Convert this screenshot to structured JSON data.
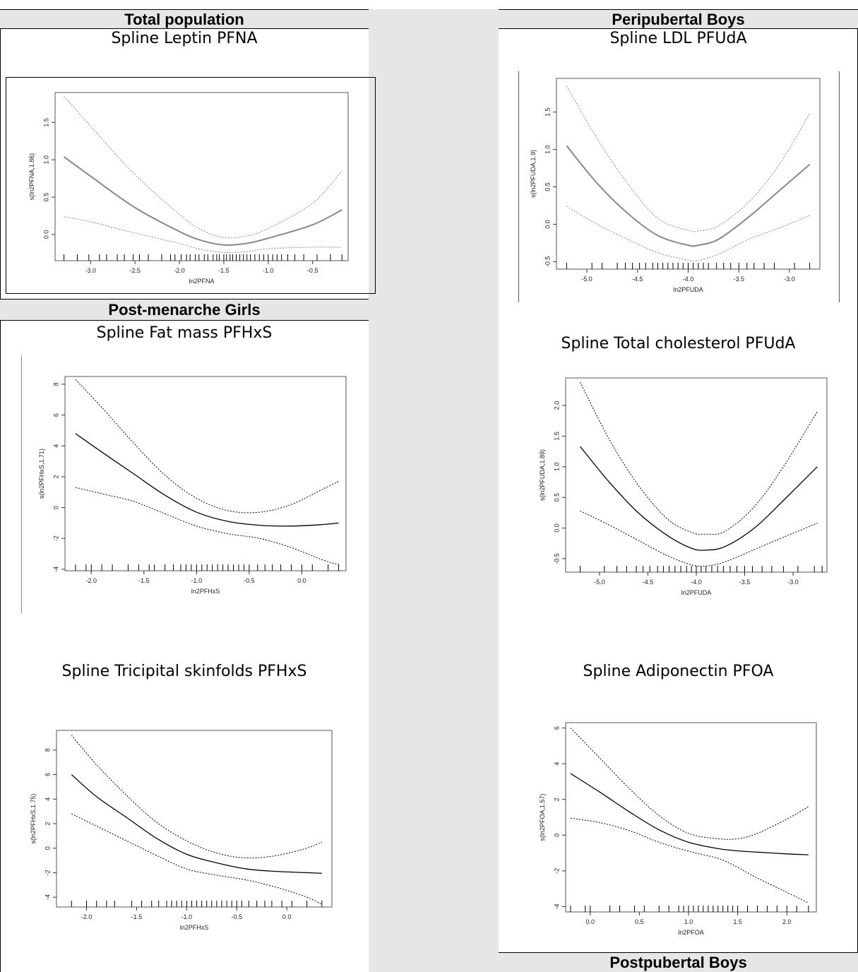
{
  "sections": {
    "total_population": "Total population",
    "post_menarche_girls": "Post-menarche Girls",
    "peripubertal_boys": "Peripubertal Boys",
    "postpubertal_boys": "Postpubertal Boys"
  },
  "charts": {
    "leptin": {
      "title": "Spline Leptin PFNA",
      "chart_data": {
        "type": "line",
        "title": "Spline Leptin PFNA",
        "xlabel": "ln2PFNA",
        "ylabel": "s(ln2PFNA,1.86)",
        "xlim": [
          -3.4,
          -0.1
        ],
        "ylim": [
          -0.35,
          1.9
        ],
        "xticks": [
          -3.0,
          -2.5,
          -2.0,
          -1.5,
          -1.0,
          -0.5
        ],
        "xtick_labels": [
          "-3.0",
          "-2.5",
          "-2.0",
          "-1.5",
          "-1.0",
          "-0.5"
        ],
        "yticks": [
          0.0,
          0.5,
          1.0,
          1.5
        ],
        "ytick_labels": [
          "0.0",
          "0.5",
          "1.0",
          "1.5"
        ],
        "series": [
          {
            "style": "solid",
            "x": [
              -3.3,
              -3.0,
              -2.5,
              -2.0,
              -1.75,
              -1.5,
              -1.25,
              -1.0,
              -0.5,
              -0.17
            ],
            "y": [
              1.04,
              0.78,
              0.36,
              0.04,
              -0.08,
              -0.14,
              -0.12,
              -0.05,
              0.13,
              0.33
            ]
          },
          {
            "style": "dotted",
            "x": [
              -3.3,
              -3.0,
              -2.5,
              -2.0,
              -1.75,
              -1.5,
              -1.25,
              -1.0,
              -0.5,
              -0.17
            ],
            "y": [
              1.85,
              1.45,
              0.8,
              0.27,
              0.06,
              -0.04,
              -0.02,
              0.08,
              0.42,
              0.85
            ]
          },
          {
            "style": "dotted",
            "x": [
              -3.3,
              -3.0,
              -2.5,
              -2.0,
              -1.75,
              -1.5,
              -1.25,
              -1.0,
              -0.5,
              -0.17
            ],
            "y": [
              0.24,
              0.17,
              0.02,
              -0.12,
              -0.2,
              -0.24,
              -0.23,
              -0.19,
              -0.17,
              -0.17
            ]
          }
        ],
        "rug": [
          -3.3,
          -3.15,
          -3.02,
          -2.9,
          -2.82,
          -2.7,
          -2.62,
          -2.52,
          -2.45,
          -2.35,
          -2.2,
          -2.1,
          -2.05,
          -1.98,
          -1.92,
          -1.88,
          -1.82,
          -1.78,
          -1.72,
          -1.68,
          -1.62,
          -1.58,
          -1.55,
          -1.5,
          -1.47,
          -1.43,
          -1.4,
          -1.36,
          -1.32,
          -1.28,
          -1.24,
          -1.2,
          -1.15,
          -1.1,
          -1.05,
          -1.0,
          -0.95,
          -0.9,
          -0.85,
          -0.78,
          -0.7,
          -0.6,
          -0.45,
          -0.3,
          -0.17
        ]
      }
    },
    "ldl": {
      "title": "Spline LDL PFUdA",
      "chart_data": {
        "type": "line",
        "title": "Spline LDL PFUdA",
        "xlabel": "ln2PFUDA",
        "ylabel": "s(ln2PFUDA,1.9)",
        "xlim": [
          -5.3,
          -2.7
        ],
        "ylim": [
          -0.6,
          1.95
        ],
        "xticks": [
          -5.0,
          -4.5,
          -4.0,
          -3.5,
          -3.0
        ],
        "xtick_labels": [
          "-5.0",
          "-4.5",
          "-4.0",
          "-3.5",
          "-3.0"
        ],
        "yticks": [
          -0.5,
          0.0,
          0.5,
          1.0,
          1.5
        ],
        "ytick_labels": [
          "-0.5",
          "0.0",
          "0.5",
          "1.0",
          "1.5"
        ],
        "series": [
          {
            "style": "solid",
            "x": [
              -5.2,
              -4.9,
              -4.6,
              -4.3,
              -4.0,
              -3.9,
              -3.7,
              -3.4,
              -3.1,
              -2.8
            ],
            "y": [
              1.05,
              0.55,
              0.15,
              -0.15,
              -0.28,
              -0.28,
              -0.2,
              0.1,
              0.45,
              0.8
            ]
          },
          {
            "style": "dotted",
            "x": [
              -5.2,
              -4.9,
              -4.6,
              -4.3,
              -4.0,
              -3.9,
              -3.7,
              -3.4,
              -3.1,
              -2.8
            ],
            "y": [
              1.85,
              1.15,
              0.55,
              0.08,
              -0.08,
              -0.09,
              -0.02,
              0.3,
              0.8,
              1.48
            ]
          },
          {
            "style": "dotted",
            "x": [
              -5.2,
              -4.9,
              -4.6,
              -4.3,
              -4.0,
              -3.9,
              -3.7,
              -3.4,
              -3.1,
              -2.8
            ],
            "y": [
              0.24,
              0.0,
              -0.2,
              -0.38,
              -0.48,
              -0.48,
              -0.4,
              -0.2,
              -0.05,
              0.12
            ]
          }
        ],
        "rug": [
          -5.2,
          -4.95,
          -4.85,
          -4.7,
          -4.62,
          -4.55,
          -4.48,
          -4.42,
          -4.35,
          -4.3,
          -4.25,
          -4.2,
          -4.15,
          -4.1,
          -4.05,
          -4.0,
          -3.95,
          -3.9,
          -3.85,
          -3.8,
          -3.72,
          -3.65,
          -3.58,
          -3.5,
          -3.42,
          -3.35,
          -3.25,
          -3.15,
          -2.95,
          -2.8
        ]
      }
    },
    "fat_mass": {
      "title": "Spline Fat mass PFHxS",
      "chart_data": {
        "type": "line",
        "title": "Spline Fat mass PFHxS",
        "xlabel": "ln2PFHxS",
        "ylabel": "s(ln2PFHxS,1.71)",
        "xlim": [
          -2.25,
          0.42
        ],
        "ylim": [
          -4.1,
          8.5
        ],
        "xticks": [
          -2.0,
          -1.5,
          -1.0,
          -0.5,
          0.0
        ],
        "xtick_labels": [
          "-2.0",
          "-1.5",
          "-1.0",
          "-0.5",
          "0.0"
        ],
        "yticks": [
          -4,
          -2,
          0,
          2,
          4,
          6,
          8
        ],
        "ytick_labels": [
          "-4",
          "-2",
          "0",
          "2",
          "4",
          "6",
          "8"
        ],
        "series": [
          {
            "style": "solid",
            "x": [
              -2.15,
              -1.9,
              -1.6,
              -1.3,
              -1.0,
              -0.7,
              -0.4,
              -0.1,
              0.2,
              0.35
            ],
            "y": [
              4.8,
              3.6,
              2.2,
              0.8,
              -0.3,
              -0.9,
              -1.15,
              -1.2,
              -1.1,
              -1.0
            ]
          },
          {
            "style": "dotted",
            "x": [
              -2.15,
              -1.9,
              -1.6,
              -1.3,
              -1.0,
              -0.7,
              -0.4,
              -0.1,
              0.2,
              0.35
            ],
            "y": [
              8.3,
              6.5,
              4.2,
              2.1,
              0.6,
              -0.2,
              -0.3,
              0.2,
              1.2,
              1.7
            ]
          },
          {
            "style": "dotted",
            "x": [
              -2.15,
              -1.9,
              -1.6,
              -1.3,
              -1.0,
              -0.7,
              -0.4,
              -0.1,
              0.2,
              0.35
            ],
            "y": [
              1.3,
              0.9,
              0.4,
              -0.4,
              -1.2,
              -1.7,
              -2.0,
              -2.6,
              -3.4,
              -3.7
            ]
          }
        ],
        "rug": [
          -2.15,
          -2.05,
          -2.0,
          -1.9,
          -1.8,
          -1.65,
          -1.55,
          -1.45,
          -1.4,
          -1.3,
          -1.22,
          -1.15,
          -1.1,
          -1.05,
          -1.0,
          -0.95,
          -0.9,
          -0.85,
          -0.8,
          -0.75,
          -0.7,
          -0.65,
          -0.6,
          -0.55,
          -0.5,
          -0.42,
          -0.35,
          -0.28,
          -0.2,
          -0.1,
          0.0,
          0.1,
          0.25,
          0.35
        ]
      }
    },
    "total_cholesterol": {
      "title": "Spline Total cholesterol PFUdA",
      "chart_data": {
        "type": "line",
        "title": "Spline Total cholesterol PFUdA",
        "xlabel": "ln2PFUDA",
        "ylabel": "s(ln2PFUDA,1.89)",
        "xlim": [
          -5.35,
          -2.65
        ],
        "ylim": [
          -0.72,
          2.45
        ],
        "xticks": [
          -5.0,
          -4.5,
          -4.0,
          -3.5,
          -3.0
        ],
        "xtick_labels": [
          "-5.0",
          "-4.5",
          "-4.0",
          "-3.5",
          "-3.0"
        ],
        "yticks": [
          -0.5,
          0.0,
          0.5,
          1.0,
          1.5,
          2.0
        ],
        "ytick_labels": [
          "-0.5",
          "0.0",
          "0.5",
          "1.0",
          "1.5",
          "2.0"
        ],
        "series": [
          {
            "style": "solid",
            "x": [
              -5.2,
              -4.9,
              -4.6,
              -4.3,
              -4.05,
              -3.9,
              -3.7,
              -3.4,
              -3.1,
              -2.75
            ],
            "y": [
              1.33,
              0.75,
              0.25,
              -0.12,
              -0.33,
              -0.36,
              -0.3,
              0.0,
              0.45,
              1.0
            ]
          },
          {
            "style": "dotted",
            "x": [
              -5.2,
              -4.9,
              -4.6,
              -4.3,
              -4.05,
              -3.9,
              -3.7,
              -3.4,
              -3.1,
              -2.75
            ],
            "y": [
              2.38,
              1.45,
              0.7,
              0.15,
              -0.07,
              -0.1,
              -0.05,
              0.35,
              1.0,
              1.9
            ]
          },
          {
            "style": "dotted",
            "x": [
              -5.2,
              -4.9,
              -4.6,
              -4.3,
              -4.05,
              -3.9,
              -3.7,
              -3.4,
              -3.1,
              -2.75
            ],
            "y": [
              0.28,
              0.05,
              -0.2,
              -0.45,
              -0.6,
              -0.62,
              -0.55,
              -0.35,
              -0.15,
              0.08
            ]
          }
        ],
        "rug": [
          -5.2,
          -4.95,
          -4.82,
          -4.72,
          -4.62,
          -4.55,
          -4.48,
          -4.4,
          -4.34,
          -4.28,
          -4.22,
          -4.16,
          -4.1,
          -4.05,
          -4.0,
          -3.95,
          -3.9,
          -3.84,
          -3.78,
          -3.72,
          -3.65,
          -3.58,
          -3.5,
          -3.42,
          -3.32,
          -3.22,
          -3.1,
          -2.95,
          -2.78,
          -2.7
        ]
      }
    },
    "tricipital": {
      "title": "Spline Tricipital skinfolds PFHxS",
      "chart_data": {
        "type": "line",
        "title": "Spline Tricipital skinfolds PFHxS",
        "xlabel": "ln2PFHxS",
        "ylabel": "s(ln2PFHxS,1.75)",
        "xlim": [
          -2.3,
          0.45
        ],
        "ylim": [
          -4.8,
          9.6
        ],
        "xticks": [
          -2.0,
          -1.5,
          -1.0,
          -0.5,
          0.0
        ],
        "xtick_labels": [
          "-2.0",
          "-1.5",
          "-1.0",
          "-0.5",
          "0.0"
        ],
        "yticks": [
          -4,
          -2,
          0,
          2,
          4,
          6,
          8
        ],
        "ytick_labels": [
          "-4",
          "-2",
          "0",
          "2",
          "4",
          "6",
          "8"
        ],
        "series": [
          {
            "style": "solid",
            "x": [
              -2.15,
              -1.9,
              -1.6,
              -1.3,
              -1.0,
              -0.7,
              -0.4,
              -0.1,
              0.2,
              0.35
            ],
            "y": [
              6.0,
              4.2,
              2.5,
              0.8,
              -0.5,
              -1.2,
              -1.7,
              -1.9,
              -2.0,
              -2.05
            ]
          },
          {
            "style": "dotted",
            "x": [
              -2.15,
              -1.9,
              -1.6,
              -1.3,
              -1.0,
              -0.7,
              -0.4,
              -0.1,
              0.2,
              0.35
            ],
            "y": [
              9.2,
              6.8,
              4.3,
              2.1,
              0.6,
              -0.4,
              -0.8,
              -0.6,
              0.0,
              0.5
            ]
          },
          {
            "style": "dotted",
            "x": [
              -2.15,
              -1.9,
              -1.6,
              -1.3,
              -1.0,
              -0.7,
              -0.4,
              -0.1,
              0.2,
              0.35
            ],
            "y": [
              2.8,
              1.8,
              0.6,
              -0.6,
              -1.7,
              -2.2,
              -2.6,
              -3.2,
              -4.0,
              -4.6
            ]
          }
        ],
        "rug": [
          -2.15,
          -2.0,
          -1.9,
          -1.8,
          -1.72,
          -1.55,
          -1.45,
          -1.35,
          -1.28,
          -1.2,
          -1.15,
          -1.1,
          -1.05,
          -1.0,
          -0.95,
          -0.9,
          -0.85,
          -0.8,
          -0.75,
          -0.7,
          -0.65,
          -0.6,
          -0.55,
          -0.5,
          -0.45,
          -0.38,
          -0.3,
          -0.22,
          -0.15,
          -0.05,
          0.05,
          0.2,
          0.35
        ]
      }
    },
    "adiponectin": {
      "title": "Spline Adiponectin PFOA",
      "chart_data": {
        "type": "line",
        "title": "Spline Adiponectin PFOA",
        "xlabel": "ln2PFOA",
        "ylabel": "s(ln2PFOA,1.57)",
        "xlim": [
          -0.25,
          2.3
        ],
        "ylim": [
          -4.3,
          6.3
        ],
        "xticks": [
          0.0,
          0.5,
          1.0,
          1.5,
          2.0
        ],
        "xtick_labels": [
          "0.0",
          "0.5",
          "1.0",
          "1.5",
          "2.0"
        ],
        "yticks": [
          -4,
          -2,
          0,
          2,
          4,
          6
        ],
        "ytick_labels": [
          "-4",
          "-2",
          "0",
          "2",
          "4",
          "6"
        ],
        "series": [
          {
            "style": "solid",
            "x": [
              -0.2,
              0.1,
              0.4,
              0.7,
              1.0,
              1.3,
              1.5,
              1.7,
              2.0,
              2.22
            ],
            "y": [
              3.45,
              2.4,
              1.3,
              0.3,
              -0.4,
              -0.75,
              -0.88,
              -0.95,
              -1.05,
              -1.1
            ]
          },
          {
            "style": "dotted",
            "x": [
              -0.2,
              0.1,
              0.4,
              0.7,
              1.0,
              1.3,
              1.5,
              1.7,
              2.0,
              2.22
            ],
            "y": [
              6.0,
              4.3,
              2.6,
              1.1,
              0.1,
              -0.2,
              -0.2,
              0.1,
              0.9,
              1.6
            ]
          },
          {
            "style": "dotted",
            "x": [
              -0.2,
              0.1,
              0.4,
              0.7,
              1.0,
              1.3,
              1.5,
              1.7,
              2.0,
              2.22
            ],
            "y": [
              0.95,
              0.7,
              0.25,
              -0.4,
              -0.9,
              -1.3,
              -1.8,
              -2.4,
              -3.2,
              -3.8
            ]
          }
        ],
        "rug": [
          -0.2,
          -0.05,
          0.0,
          0.2,
          0.3,
          0.45,
          0.55,
          0.7,
          0.8,
          0.9,
          0.95,
          1.0,
          1.05,
          1.1,
          1.15,
          1.2,
          1.25,
          1.3,
          1.35,
          1.4,
          1.45,
          1.5,
          1.6,
          1.7,
          1.8,
          1.9,
          2.0,
          2.1,
          2.22
        ]
      }
    }
  }
}
